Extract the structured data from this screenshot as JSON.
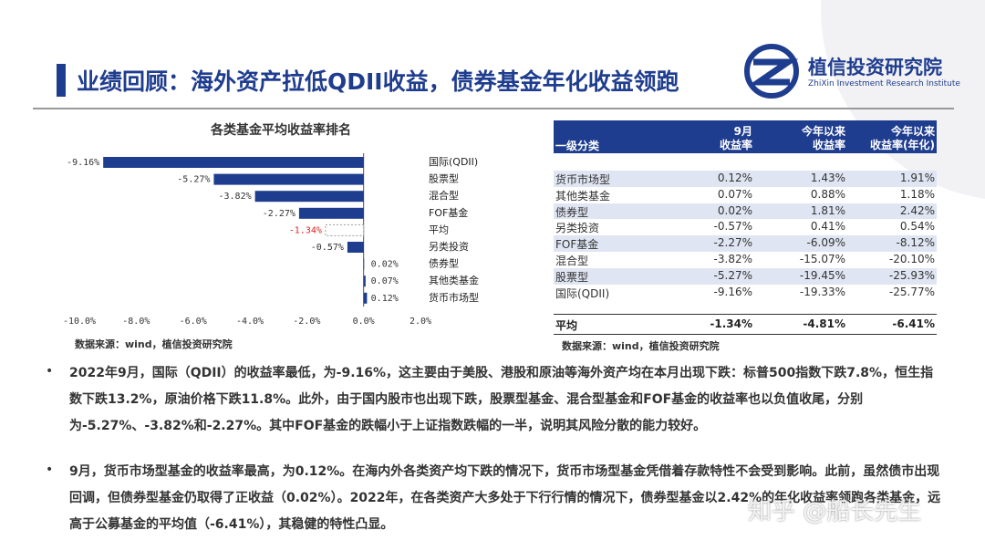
{
  "header": {
    "title": "业绩回顾：海外资产拉低QDII收益，债券基金年化收益领跑",
    "logo_name": "植信投资研究院",
    "logo_sub": "ZhiXin Investment Research Institute"
  },
  "chart_data": {
    "type": "bar",
    "orientation": "horizontal",
    "title": "各类基金平均收益率排名",
    "categories": [
      "国际(QDII)",
      "股票型",
      "混合型",
      "FOF基金",
      "平均",
      "另类投资",
      "债券型",
      "其他类基金",
      "货币市场型"
    ],
    "values": [
      -9.16,
      -5.27,
      -3.82,
      -2.27,
      -1.34,
      -0.57,
      0.02,
      0.07,
      0.12
    ],
    "value_labels": [
      "-9.16%",
      "-5.27%",
      "-3.82%",
      "-2.27%",
      "-1.34%",
      "-0.57%",
      "0.02%",
      "0.07%",
      "0.12%"
    ],
    "colors": [
      "#1f3d8f",
      "#1f3d8f",
      "#1f3d8f",
      "#1f3d8f",
      "#ffffff",
      "#1f3d8f",
      "#1f3d8f",
      "#1f3d8f",
      "#1f3d8f"
    ],
    "value_label_colors": [
      "#333333",
      "#333333",
      "#333333",
      "#333333",
      "#e02020",
      "#333333",
      "#333333",
      "#333333",
      "#333333"
    ],
    "xlim": [
      -10,
      2
    ],
    "xticks": [
      {
        "value": -10,
        "label": "-10.0%"
      },
      {
        "value": -8,
        "label": "-8.0%"
      },
      {
        "value": -6,
        "label": "-6.0%"
      },
      {
        "value": -4,
        "label": "-4.0%"
      },
      {
        "value": -2,
        "label": "-2.0%"
      },
      {
        "value": 0,
        "label": "0.0%"
      },
      {
        "value": 2,
        "label": "2.0%"
      }
    ],
    "source": "数据来源：wind，植信投资研究院"
  },
  "table": {
    "header": [
      [
        "一级分类"
      ],
      [
        "9月",
        "收益率"
      ],
      [
        "今年以来",
        "收益率"
      ],
      [
        "今年以来",
        "收益率(年化)"
      ]
    ],
    "rows": [
      [
        "货币市场型",
        "0.12%",
        "1.43%",
        "1.91%"
      ],
      [
        "其他类基金",
        "0.07%",
        "0.88%",
        "1.18%"
      ],
      [
        "债券型",
        "0.02%",
        "1.81%",
        "2.42%"
      ],
      [
        "另类投资",
        "-0.57%",
        "0.41%",
        "0.54%"
      ],
      [
        "FOF基金",
        "-2.27%",
        "-6.09%",
        "-8.12%"
      ],
      [
        "混合型",
        "-3.82%",
        "-15.07%",
        "-20.10%"
      ],
      [
        "股票型",
        "-5.27%",
        "-19.45%",
        "-25.93%"
      ],
      [
        "国际(QDII)",
        "-9.16%",
        "-19.33%",
        "-25.77%"
      ]
    ],
    "average": [
      "平均",
      "-1.34%",
      "-4.81%",
      "-6.41%"
    ],
    "source": "数据来源：wind，植信投资研究院"
  },
  "bullets": [
    "2022年9月，国际（QDII）的收益率最低，为-9.16%，这主要由于美股、港股和原油等海外资产均在本月出现下跌：标普500指数下跌7.8%，恒生指数下跌13.2%，原油价格下跌11.8%。此外，由于国内股市也出现下跌，股票型基金、混合型基金和FOF基金的收益率也以负值收尾，分别为-5.27%、-3.82%和-2.27%。其中FOF基金的跌幅小于上证指数跌幅的一半，说明其风险分散的能力较好。",
    "9月，货币市场型基金的收益率最高，为0.12%。在海内外各类资产均下跌的情况下，货币市场型基金凭借着存款特性不会受到影响。此前，虽然债市出现回调，但债券型基金仍取得了正收益（0.02%）。2022年，在各类资产大多处于下行行情的情况下，债券型基金以2.42%的年化收益率领跑各类基金，远高于公募基金的平均值（-6.41%），其稳健的特性凸显。"
  ],
  "watermark": "知乎 @船长先生"
}
